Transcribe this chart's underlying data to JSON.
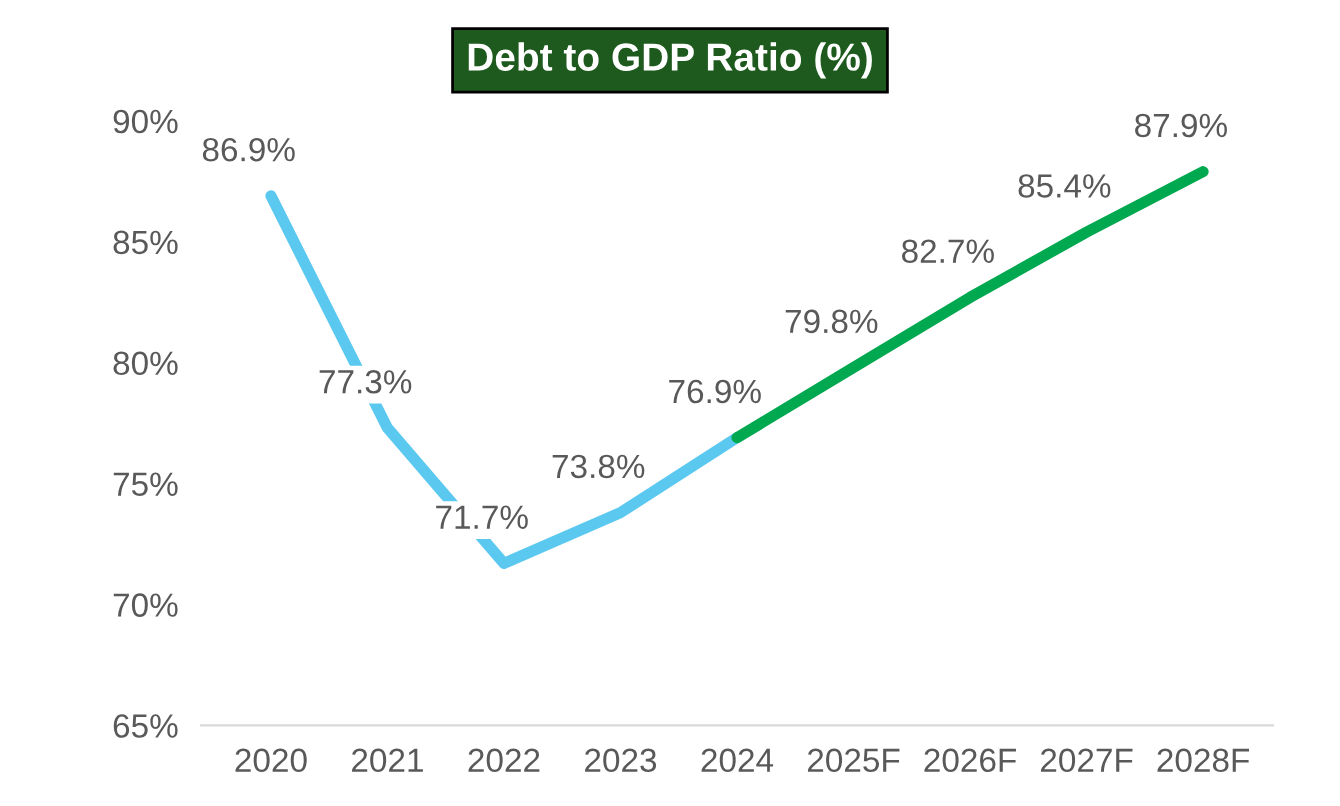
{
  "chart_data": {
    "type": "line",
    "title": "Debt to GDP Ratio (%)",
    "categories": [
      "2020",
      "2021",
      "2022",
      "2023",
      "2024",
      "2025F",
      "2026F",
      "2027F",
      "2028F"
    ],
    "series": [
      {
        "color": "#5bc8f0",
        "values": [
          86.9,
          77.3,
          71.7,
          73.8,
          76.9,
          null,
          null,
          null,
          null
        ],
        "value_labels": [
          "86.9%",
          "77.3%",
          "71.7%",
          "73.8%",
          "76.9%",
          null,
          null,
          null,
          null
        ]
      },
      {
        "color": "#00a84f",
        "values": [
          null,
          null,
          null,
          null,
          76.9,
          79.8,
          82.7,
          85.4,
          87.9
        ],
        "value_labels": [
          null,
          null,
          null,
          null,
          null,
          "79.8%",
          "82.7%",
          "85.4%",
          "87.9%"
        ]
      }
    ],
    "ylim": [
      65,
      90
    ],
    "yticks": [
      {
        "value": 65,
        "label": "65%"
      },
      {
        "value": 70,
        "label": "70%"
      },
      {
        "value": 75,
        "label": "75%"
      },
      {
        "value": 80,
        "label": "80%"
      },
      {
        "value": 85,
        "label": "85%"
      },
      {
        "value": 90,
        "label": "90%"
      }
    ],
    "grid": false,
    "marker": "none",
    "line_style": "solid"
  }
}
